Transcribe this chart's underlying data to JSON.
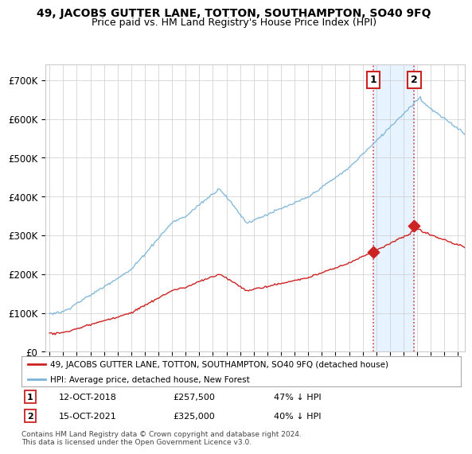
{
  "title": "49, JACOBS GUTTER LANE, TOTTON, SOUTHAMPTON, SO40 9FQ",
  "subtitle": "Price paid vs. HM Land Registry's House Price Index (HPI)",
  "ylabel_ticks": [
    "£0",
    "£100K",
    "£200K",
    "£300K",
    "£400K",
    "£500K",
    "£600K",
    "£700K"
  ],
  "ytick_values": [
    0,
    100000,
    200000,
    300000,
    400000,
    500000,
    600000,
    700000
  ],
  "ylim": [
    0,
    740000
  ],
  "xlim_start": 1994.7,
  "xlim_end": 2025.5,
  "hpi_color": "#7ab4d8",
  "price_color": "#cc2222",
  "vline_color": "#cc2222",
  "shade_color": "#ddeeff",
  "marker1_date": 2018.79,
  "marker2_date": 2021.79,
  "marker1_price": 257500,
  "marker2_price": 325000,
  "legend_entry1": "49, JACOBS GUTTER LANE, TOTTON, SOUTHAMPTON, SO40 9FQ (detached house)",
  "legend_entry2": "HPI: Average price, detached house, New Forest",
  "note1_label": "1",
  "note2_label": "2",
  "note1_date": "12-OCT-2018",
  "note2_date": "15-OCT-2021",
  "note1_price": "£257,500",
  "note2_price": "£325,000",
  "note1_hpi": "47% ↓ HPI",
  "note2_hpi": "40% ↓ HPI",
  "footer": "Contains HM Land Registry data © Crown copyright and database right 2024.\nThis data is licensed under the Open Government Licence v3.0.",
  "background_color": "#ffffff",
  "plot_bg_color": "#ffffff",
  "grid_color": "#cccccc",
  "title_fontsize": 10,
  "subtitle_fontsize": 9
}
